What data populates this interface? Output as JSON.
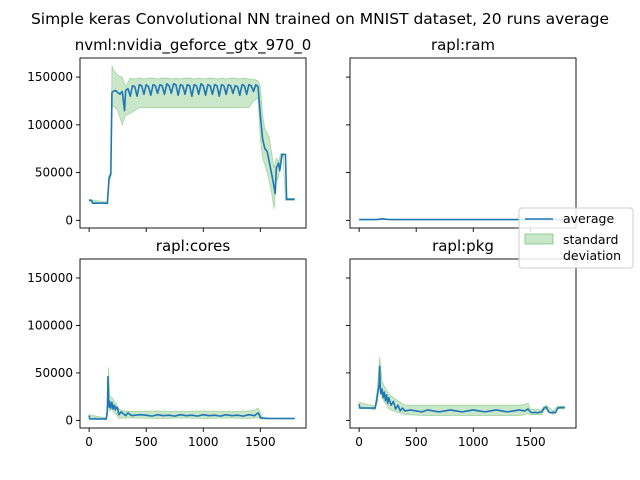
{
  "chart_data": {
    "type": "line",
    "title": "Simple keras Convolutional NN trained on MNIST dataset, 20 runs average",
    "shared_y": true,
    "shared_x": true,
    "xlim": [
      -80,
      1900
    ],
    "ylim": [
      -8000,
      170000
    ],
    "xticks": [
      0,
      500,
      1000,
      1500
    ],
    "xtick_labels": [
      "0",
      "500",
      "1000",
      "1500"
    ],
    "yticks": [
      0,
      50000,
      100000,
      150000
    ],
    "ytick_labels": [
      "0",
      "50000",
      "100000",
      "150000"
    ],
    "legend": {
      "location": "center-right",
      "entries": [
        {
          "label": "average",
          "kind": "line",
          "color": "#1f77b4"
        },
        {
          "label": "standard\ndeviation",
          "kind": "band",
          "color": "#2ca02c"
        }
      ]
    },
    "colors": {
      "average": "#1f77b4",
      "std_band": "#2ca02c"
    },
    "subplots": [
      {
        "id": "gpu",
        "title": "nvml:nvidia_geforce_gtx_970_0",
        "series": [
          {
            "name": "average",
            "x": [
              0,
              20,
              30,
              160,
              175,
              190,
              200,
              210,
              230,
              250,
              270,
              290,
              310,
              320,
              340,
              360,
              380,
              400,
              420,
              440,
              460,
              480,
              500,
              520,
              540,
              560,
              580,
              600,
              620,
              640,
              660,
              680,
              700,
              720,
              740,
              760,
              780,
              800,
              820,
              840,
              860,
              880,
              900,
              920,
              940,
              960,
              980,
              1000,
              1020,
              1040,
              1060,
              1080,
              1100,
              1120,
              1140,
              1160,
              1180,
              1200,
              1220,
              1240,
              1260,
              1280,
              1300,
              1320,
              1340,
              1360,
              1380,
              1400,
              1420,
              1440,
              1460,
              1480,
              1500,
              1520,
              1540,
              1560,
              1580,
              1600,
              1620,
              1630,
              1640,
              1660,
              1670,
              1690,
              1700,
              1720,
              1730,
              1760,
              1800
            ],
            "values": [
              21000,
              21000,
              18000,
              18000,
              45000,
              48000,
              134000,
              135000,
              136000,
              134000,
              132000,
              135000,
              115000,
              136000,
              138000,
              130000,
              141000,
              140000,
              130000,
              142000,
              141000,
              132000,
              142000,
              140000,
              131000,
              142000,
              141000,
              133000,
              142000,
              141000,
              132000,
              143000,
              141000,
              133000,
              143000,
              142000,
              131000,
              142000,
              141000,
              132000,
              142000,
              141000,
              130000,
              142000,
              141000,
              132000,
              143000,
              141000,
              131000,
              142000,
              141000,
              132000,
              142000,
              141000,
              130000,
              142000,
              141000,
              132000,
              142000,
              141000,
              133000,
              141000,
              140000,
              131000,
              142000,
              141000,
              132000,
              142000,
              141000,
              135000,
              142000,
              140000,
              110000,
              85000,
              75000,
              72000,
              60000,
              48000,
              35000,
              28000,
              55000,
              60000,
              52000,
              69000,
              69000,
              69000,
              22000,
              22000,
              22000
            ]
          },
          {
            "name": "standard deviation",
            "x": [
              0,
              160,
              175,
              190,
              200,
              210,
              250,
              290,
              320,
              360,
              400,
              440,
              480,
              520,
              560,
              600,
              640,
              680,
              720,
              760,
              800,
              840,
              880,
              920,
              960,
              1000,
              1040,
              1080,
              1120,
              1160,
              1200,
              1240,
              1280,
              1320,
              1360,
              1400,
              1440,
              1480,
              1500,
              1520,
              1540,
              1560,
              1580,
              1600,
              1620,
              1640,
              1660,
              1680,
              1700,
              1720,
              1760,
              1800
            ],
            "upper": [
              22000,
              19000,
              48000,
              50000,
              162000,
              158000,
              152000,
              150000,
              140000,
              149000,
              148000,
              149000,
              148000,
              149000,
              149000,
              148000,
              149000,
              149000,
              148000,
              149000,
              148000,
              149000,
              149000,
              148000,
              149000,
              148000,
              149000,
              149000,
              148000,
              149000,
              148000,
              149000,
              149000,
              148000,
              149000,
              148000,
              148000,
              146000,
              140000,
              110000,
              95000,
              92000,
              85000,
              70000,
              55000,
              65000,
              62000,
              70000,
              70000,
              23000,
              23000,
              23000
            ],
            "lower": [
              20000,
              17000,
              42000,
              44000,
              118000,
              120000,
              115000,
              100000,
              110000,
              112000,
              115000,
              118000,
              118000,
              118000,
              118000,
              118000,
              118000,
              118000,
              118000,
              118000,
              118000,
              118000,
              118000,
              118000,
              118000,
              118000,
              118000,
              118000,
              118000,
              118000,
              118000,
              118000,
              118000,
              118000,
              118000,
              118000,
              125000,
              128000,
              85000,
              65000,
              58000,
              50000,
              40000,
              28000,
              12000,
              40000,
              45000,
              66000,
              66000,
              21000,
              21000,
              21000
            ]
          }
        ]
      },
      {
        "id": "ram",
        "title": "rapl:ram",
        "series": [
          {
            "name": "average",
            "x": [
              0,
              150,
              180,
              200,
              230,
              260,
              300,
              400,
              600,
              800,
              1000,
              1200,
              1400,
              1500,
              1600,
              1800,
              1900
            ],
            "values": [
              800,
              800,
              1200,
              1600,
              1200,
              900,
              800,
              800,
              800,
              800,
              800,
              800,
              800,
              800,
              800,
              800,
              800
            ]
          },
          {
            "name": "standard deviation",
            "x": [
              0,
              150,
              180,
              200,
              230,
              260,
              300,
              1900
            ],
            "upper": [
              1000,
              1000,
              1600,
              2200,
              1600,
              1100,
              1000,
              1000
            ],
            "lower": [
              600,
              600,
              800,
              1000,
              800,
              700,
              600,
              600
            ]
          }
        ]
      },
      {
        "id": "cores",
        "title": "rapl:cores",
        "series": [
          {
            "name": "average",
            "x": [
              0,
              5,
              20,
              40,
              80,
              120,
              150,
              160,
              165,
              170,
              175,
              180,
              185,
              190,
              200,
              210,
              220,
              230,
              240,
              250,
              260,
              280,
              300,
              320,
              340,
              360,
              380,
              400,
              450,
              500,
              550,
              600,
              650,
              700,
              750,
              800,
              850,
              900,
              950,
              1000,
              1050,
              1100,
              1150,
              1200,
              1250,
              1300,
              1350,
              1400,
              1450,
              1470,
              1480,
              1490,
              1500,
              1520,
              1560,
              1600,
              1650,
              1700,
              1750,
              1800
            ],
            "values": [
              5000,
              1500,
              1500,
              1500,
              1500,
              1500,
              1500,
              10000,
              46000,
              22000,
              14000,
              20000,
              16000,
              13000,
              19000,
              12000,
              16000,
              11000,
              14000,
              13000,
              6000,
              9000,
              7000,
              5000,
              8000,
              6000,
              5000,
              5500,
              6000,
              5500,
              4500,
              6000,
              5000,
              5500,
              4500,
              6000,
              5000,
              5500,
              4500,
              6000,
              5000,
              5500,
              4500,
              6000,
              5000,
              5500,
              4500,
              6000,
              5000,
              7000,
              8000,
              6000,
              3000,
              2500,
              2000,
              2000,
              2000,
              2000,
              2000,
              2000
            ]
          },
          {
            "name": "standard deviation",
            "x": [
              0,
              150,
              160,
              170,
              180,
              200,
              220,
              240,
              260,
              300,
              400,
              600,
              800,
              1000,
              1200,
              1400,
              1450,
              1480,
              1500,
              1520,
              1600,
              1800
            ],
            "upper": [
              6000,
              2500,
              20000,
              56000,
              26000,
              24000,
              20000,
              17000,
              12000,
              10000,
              9500,
              10000,
              9500,
              10000,
              9500,
              10000,
              11000,
              13000,
              8000,
              3000,
              2500,
              2500
            ],
            "lower": [
              4000,
              500,
              5000,
              32000,
              10000,
              12000,
              8000,
              6000,
              2000,
              2500,
              2500,
              2000,
              2500,
              2000,
              2500,
              2000,
              2500,
              3000,
              1500,
              1500,
              1500,
              1500
            ]
          }
        ]
      },
      {
        "id": "pkg",
        "title": "rapl:pkg",
        "series": [
          {
            "name": "average",
            "x": [
              0,
              5,
              20,
              60,
              100,
              140,
              155,
              165,
              175,
              180,
              185,
              190,
              200,
              210,
              220,
              230,
              240,
              250,
              260,
              280,
              300,
              320,
              340,
              360,
              380,
              400,
              450,
              500,
              550,
              600,
              650,
              700,
              750,
              800,
              850,
              900,
              950,
              1000,
              1050,
              1100,
              1150,
              1200,
              1250,
              1300,
              1350,
              1400,
              1450,
              1480,
              1500,
              1520,
              1540,
              1560,
              1580,
              1600,
              1620,
              1640,
              1660,
              1680,
              1700,
              1720,
              1740,
              1760,
              1800
            ],
            "values": [
              17000,
              13000,
              13000,
              13000,
              13000,
              13000,
              22000,
              30000,
              38000,
              57000,
              34000,
              28000,
              33000,
              24000,
              30000,
              21000,
              27000,
              18000,
              24000,
              16000,
              20000,
              12000,
              16000,
              10000,
              13000,
              10000,
              11000,
              10000,
              9000,
              11000,
              10000,
              9000,
              10000,
              11000,
              10000,
              9000,
              10000,
              11000,
              10000,
              9000,
              10000,
              11000,
              10000,
              9000,
              10000,
              11000,
              10000,
              12000,
              9000,
              8000,
              8500,
              8000,
              8500,
              9000,
              13000,
              14000,
              9000,
              8000,
              8500,
              8000,
              13000,
              13500,
              13500
            ]
          },
          {
            "name": "standard deviation",
            "x": [
              0,
              140,
              160,
              180,
              200,
              220,
              240,
              260,
              300,
              400,
              600,
              800,
              1000,
              1200,
              1400,
              1450,
              1480,
              1500,
              1600,
              1620,
              1640,
              1700,
              1740,
              1800
            ],
            "upper": [
              19000,
              15000,
              35000,
              67000,
              42000,
              36000,
              32000,
              28000,
              24000,
              16000,
              16000,
              16000,
              16000,
              16000,
              16000,
              17000,
              18000,
              12000,
              11000,
              15000,
              16000,
              10000,
              15000,
              15000
            ],
            "lower": [
              15000,
              11000,
              20000,
              45000,
              24000,
              20000,
              16000,
              12000,
              10000,
              6000,
              5000,
              5000,
              5000,
              5000,
              5000,
              6000,
              7000,
              6000,
              6000,
              11000,
              12000,
              6000,
              12000,
              12000
            ]
          }
        ]
      }
    ]
  }
}
